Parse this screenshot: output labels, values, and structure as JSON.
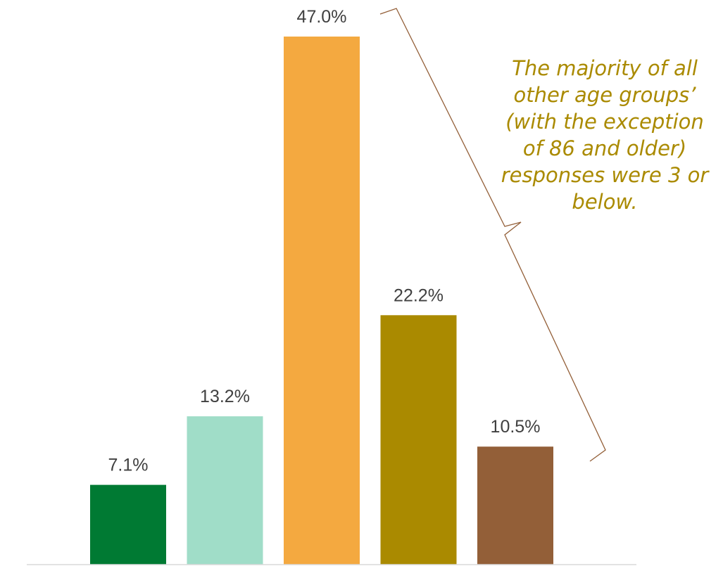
{
  "chart_data": {
    "type": "bar",
    "categories": [
      "",
      "",
      "",
      "",
      ""
    ],
    "values": [
      7.1,
      13.2,
      47.0,
      22.2,
      10.5
    ],
    "value_labels": [
      "7.1%",
      "13.2%",
      "47.0%",
      "22.2%",
      "10.5%"
    ],
    "bar_colors": [
      "#007A33",
      "#A0DDC8",
      "#F4A940",
      "#AA8A00",
      "#935F38"
    ],
    "ylim": [
      0,
      47.0
    ],
    "title": "",
    "xlabel": "",
    "ylabel": "",
    "grid": false,
    "legend": "none"
  },
  "annotation": {
    "text": "The majority of all other age groups’ (with the exception of 86 and older) responses were 3 or below.",
    "color": "#AA8A00",
    "brace_color": "#935F38"
  }
}
